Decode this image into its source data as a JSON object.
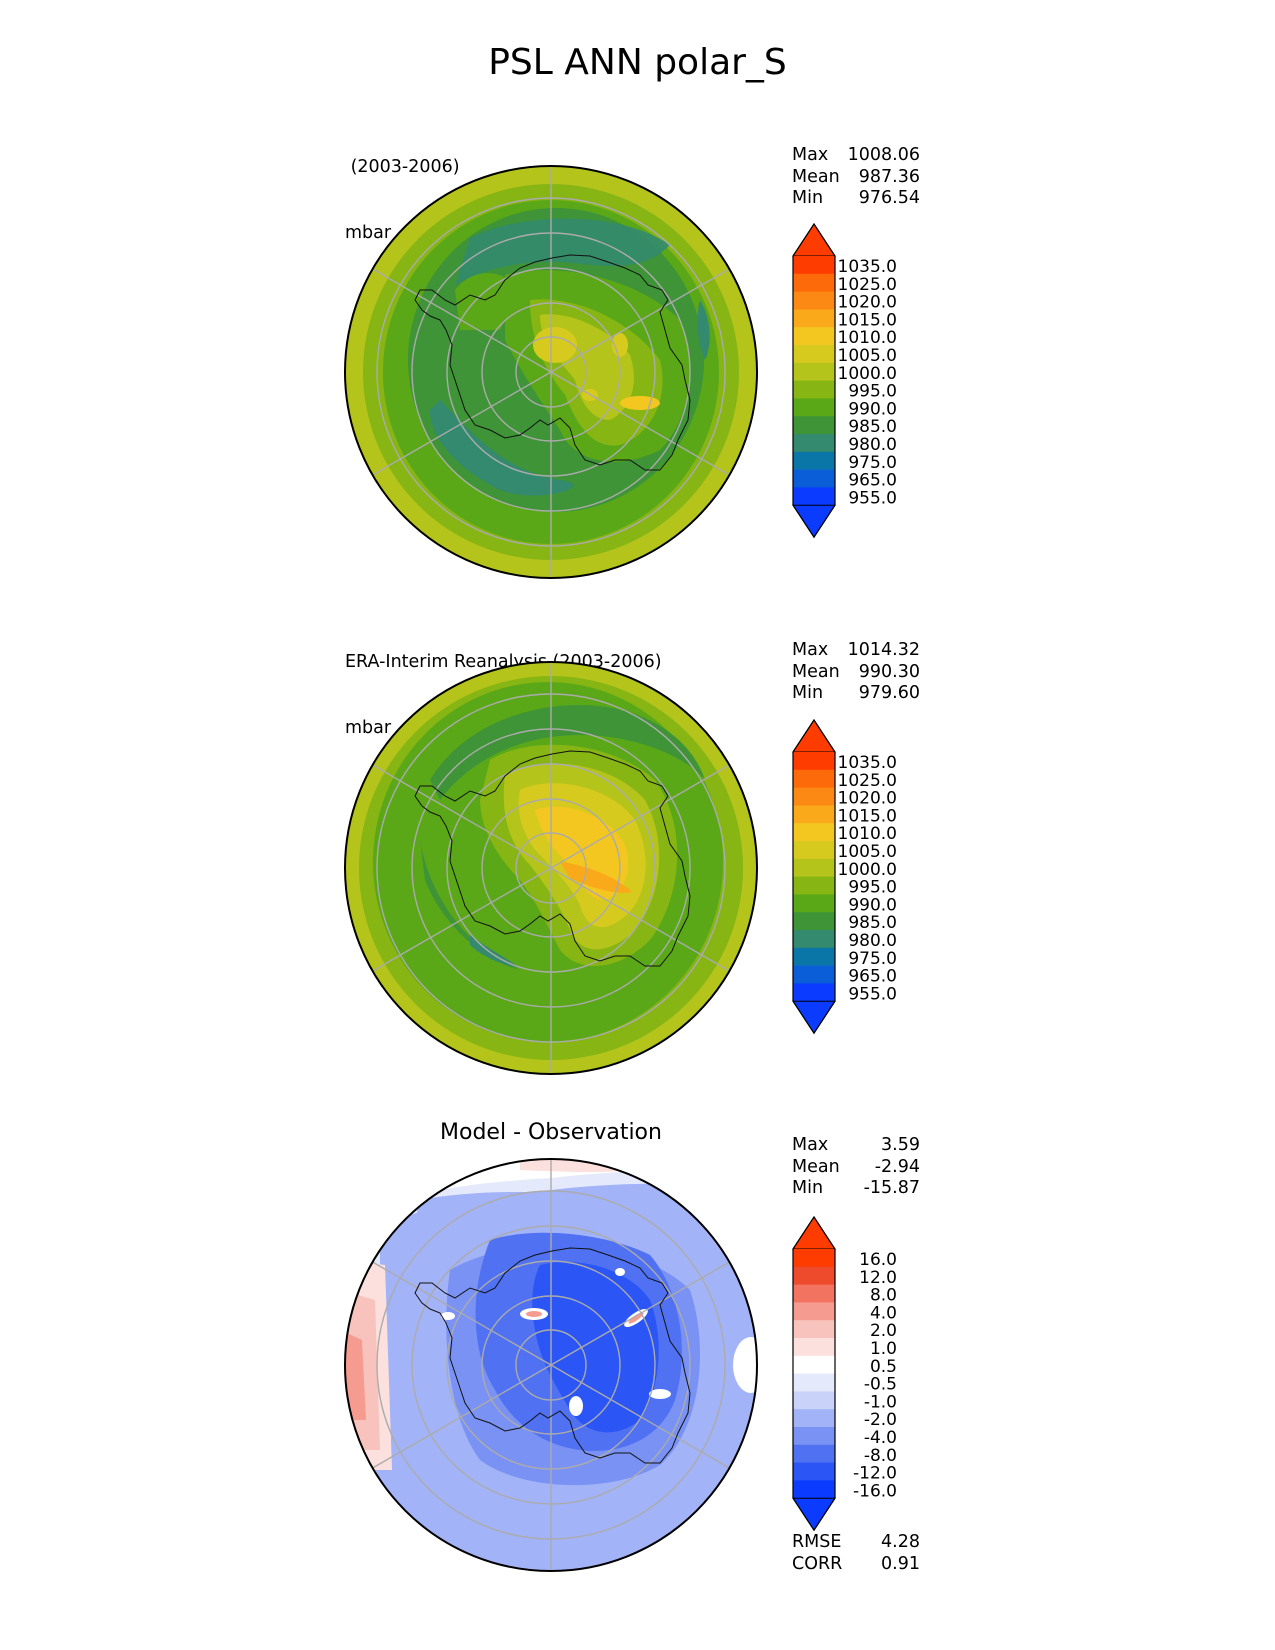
{
  "title": "PSL ANN polar_S",
  "colors": {
    "sequential": [
      "#0b3bff",
      "#0a5fd8",
      "#0a76a8",
      "#338a6e",
      "#3e9436",
      "#5aa818",
      "#86b514",
      "#b5c41a",
      "#d7ca1e",
      "#f3c720",
      "#f9a91a",
      "#fb8913",
      "#fd6a0a",
      "#fe3c00"
    ],
    "diverging": [
      "#0b3bff",
      "#2b56f5",
      "#4f71f2",
      "#7a92f4",
      "#a3b3f7",
      "#c9d3fa",
      "#e4e9fc",
      "#ffffff",
      "#fbe0de",
      "#f8c3bd",
      "#f59b90",
      "#f27460",
      "#ee4a2c",
      "#fe3c00"
    ]
  },
  "panels": [
    {
      "id": "model",
      "label_line1": " (2003-2006)",
      "label_line2": "mbar",
      "title": "",
      "stats": [
        {
          "name": "Max",
          "value": "1008.06"
        },
        {
          "name": "Mean",
          "value": "987.36"
        },
        {
          "name": "Min",
          "value": "976.54"
        }
      ]
    },
    {
      "id": "obs",
      "label_line1": "ERA-Interim Reanalysis (2003-2006)",
      "label_line2": "mbar",
      "title": "",
      "stats": [
        {
          "name": "Max",
          "value": "1014.32"
        },
        {
          "name": "Mean",
          "value": "990.30"
        },
        {
          "name": "Min",
          "value": "979.60"
        }
      ]
    },
    {
      "id": "diff",
      "label_line1": "",
      "label_line2": "",
      "title": "Model - Observation",
      "stats": [
        {
          "name": "Max",
          "value": "3.59"
        },
        {
          "name": "Mean",
          "value": "-2.94"
        },
        {
          "name": "Min",
          "value": "-15.87"
        }
      ],
      "extra_stats": [
        {
          "name": "RMSE",
          "value": "4.28"
        },
        {
          "name": "CORR",
          "value": "0.91"
        }
      ]
    }
  ],
  "chart_data": [
    {
      "type": "heatmap",
      "projection": "south-polar-stereographic",
      "title": "(2003-2006)",
      "units": "mbar",
      "stats": {
        "max": 1008.06,
        "mean": 987.36,
        "min": 976.54
      },
      "colorbar_levels": [
        "1035.0",
        "1025.0",
        "1020.0",
        "1015.0",
        "1010.0",
        "1005.0",
        "1000.0",
        "995.0",
        "990.0",
        "985.0",
        "980.0",
        "975.0",
        "965.0",
        "955.0"
      ],
      "colorbar_extend": "both"
    },
    {
      "type": "heatmap",
      "projection": "south-polar-stereographic",
      "title": "ERA-Interim Reanalysis (2003-2006)",
      "units": "mbar",
      "stats": {
        "max": 1014.32,
        "mean": 990.3,
        "min": 979.6
      },
      "colorbar_levels": [
        "1035.0",
        "1025.0",
        "1020.0",
        "1015.0",
        "1010.0",
        "1005.0",
        "1000.0",
        "995.0",
        "990.0",
        "985.0",
        "980.0",
        "975.0",
        "965.0",
        "955.0"
      ],
      "colorbar_extend": "both"
    },
    {
      "type": "heatmap",
      "projection": "south-polar-stereographic",
      "title": "Model - Observation",
      "stats": {
        "max": 3.59,
        "mean": -2.94,
        "min": -15.87,
        "rmse": 4.28,
        "corr": 0.91
      },
      "colorbar_levels": [
        "16.0",
        "12.0",
        "8.0",
        "4.0",
        "2.0",
        "1.0",
        "0.5",
        "-0.5",
        "-1.0",
        "-2.0",
        "-4.0",
        "-8.0",
        "-12.0",
        "-16.0"
      ],
      "colorbar_extend": "both"
    }
  ]
}
